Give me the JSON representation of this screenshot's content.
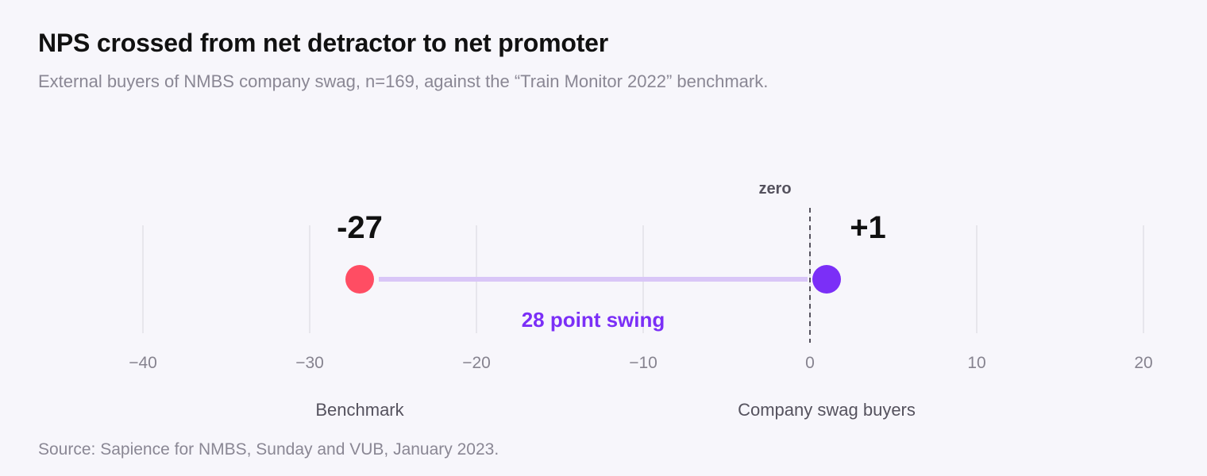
{
  "header": {
    "title": "NPS crossed from net detractor to net promoter",
    "subtitle": "External buyers of NMBS company swag, n=169, against the “Train Monitor 2022” benchmark."
  },
  "footer": {
    "source": "Source: Sapience for NMBS, Sunday and VUB, January 2023."
  },
  "chart_data": {
    "type": "scatter",
    "title": "NPS crossed from net detractor to net promoter",
    "subtitle": "External buyers of NMBS company swag, n=169, against the “Train Monitor 2022” benchmark.",
    "xlim": [
      -40,
      20
    ],
    "ticks": [
      -40,
      -30,
      -20,
      -10,
      0,
      10,
      20
    ],
    "tick_labels": [
      "−40",
      "−30",
      "−20",
      "−10",
      "0",
      "10",
      "20"
    ],
    "grid": true,
    "points": [
      {
        "name": "Benchmark",
        "value": -27,
        "value_label": "-27",
        "color": "#ff4d63"
      },
      {
        "name": "Company swag buyers",
        "value": 1,
        "value_label": "+1",
        "color": "#7b2ff7"
      }
    ],
    "connector_color": "#d9c6f7",
    "reference_line": {
      "value": 0,
      "label": "zero"
    },
    "annotation": {
      "text": "28 point swing",
      "color": "#7b2ff7"
    }
  }
}
